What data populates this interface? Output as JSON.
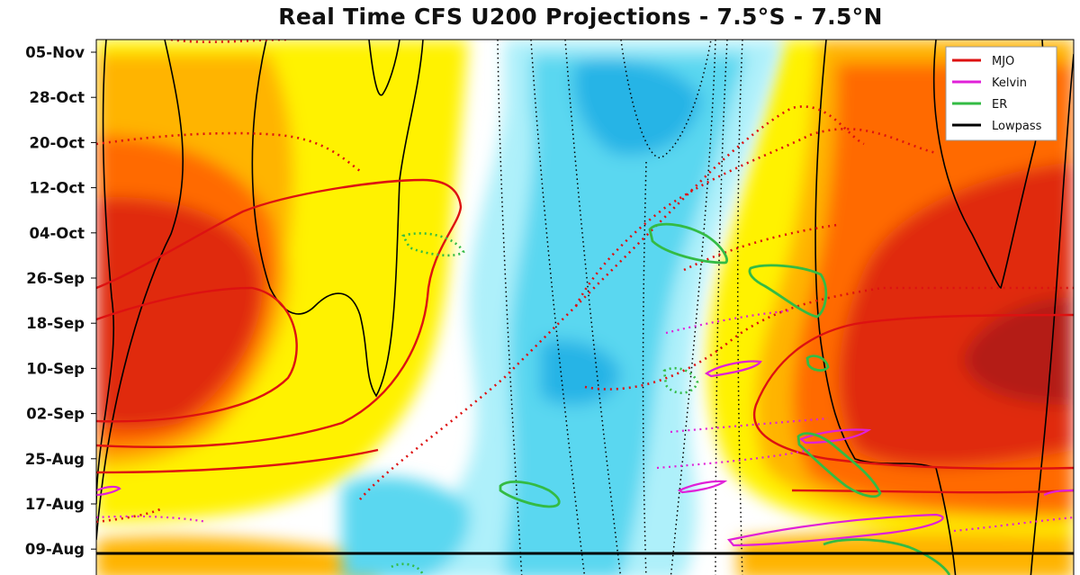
{
  "chart_data": {
    "type": "heatmap",
    "title": "Real Time CFS U200 Projections - 7.5°S - 7.5°N",
    "xlabel": "",
    "ylabel": "",
    "y_ticks": [
      "05-Nov",
      "28-Oct",
      "20-Oct",
      "12-Oct",
      "04-Oct",
      "26-Sep",
      "18-Sep",
      "10-Sep",
      "02-Sep",
      "25-Aug",
      "17-Aug",
      "09-Aug"
    ],
    "current_date_line": "09-Aug",
    "colormap": [
      "#ffffff",
      "#fff200",
      "#ffb400",
      "#ff6a00",
      "#e02a10",
      "#b41a14"
    ],
    "negative_colormap": [
      "#ffffff",
      "#aef0fa",
      "#5ad7f0",
      "#28b4e6"
    ],
    "legend": {
      "position": "top-right",
      "entries": [
        {
          "name": "MJO",
          "color": "#dd1111"
        },
        {
          "name": "Kelvin",
          "color": "#e020d8"
        },
        {
          "name": "ER",
          "color": "#33bb44"
        },
        {
          "name": "Lowpass",
          "color": "#000000"
        }
      ]
    }
  }
}
